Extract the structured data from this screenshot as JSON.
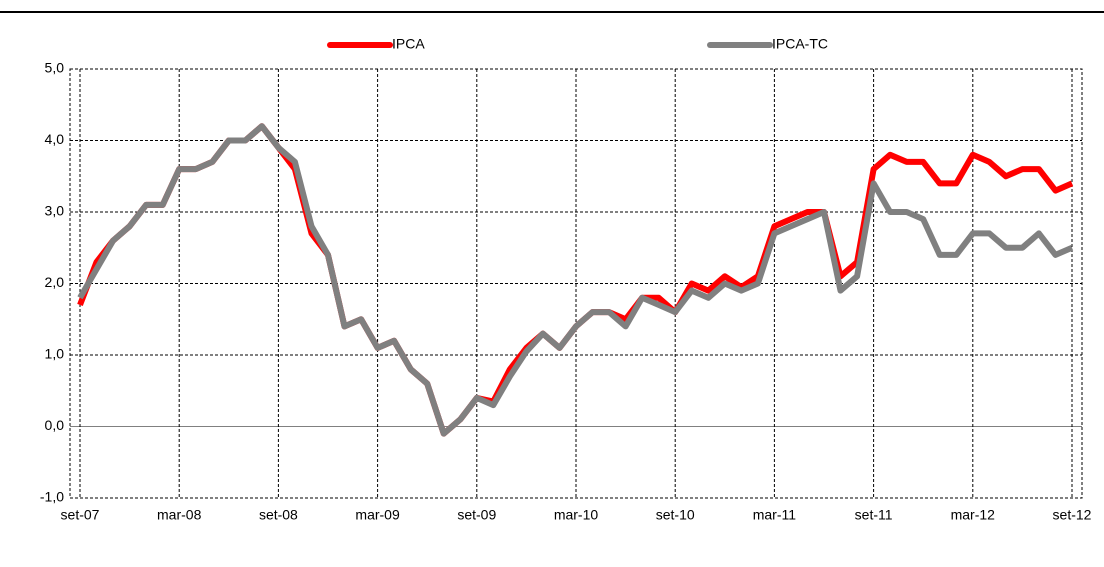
{
  "chart_data": {
    "type": "line",
    "categories": [
      "set-07",
      null,
      null,
      null,
      null,
      null,
      "mar-08",
      null,
      null,
      null,
      null,
      null,
      "set-08",
      null,
      null,
      null,
      null,
      null,
      "mar-09",
      null,
      null,
      null,
      null,
      null,
      "set-09",
      null,
      null,
      null,
      null,
      null,
      "mar-10",
      null,
      null,
      null,
      null,
      null,
      "set-10",
      null,
      null,
      null,
      null,
      null,
      "mar-11",
      null,
      null,
      null,
      null,
      null,
      "set-11",
      null,
      null,
      null,
      null,
      null,
      "mar-12",
      null,
      null,
      null,
      null,
      null,
      "set-12"
    ],
    "series": [
      {
        "name": "IPCA",
        "color": "#ff0000",
        "values": [
          1.7,
          2.3,
          2.6,
          2.8,
          3.1,
          3.1,
          3.6,
          3.6,
          3.7,
          4.0,
          4.0,
          4.2,
          3.9,
          3.6,
          2.7,
          2.4,
          1.4,
          1.5,
          1.1,
          1.2,
          0.8,
          0.6,
          -0.1,
          0.1,
          0.4,
          0.35,
          0.8,
          1.1,
          1.3,
          1.1,
          1.4,
          1.6,
          1.6,
          1.5,
          1.8,
          1.8,
          1.6,
          2.0,
          1.9,
          2.1,
          1.95,
          2.1,
          2.8,
          2.9,
          3.0,
          3.0,
          2.1,
          2.3,
          3.6,
          3.8,
          3.7,
          3.7,
          3.4,
          3.4,
          3.8,
          3.7,
          3.5,
          3.6,
          3.6,
          3.3,
          3.4
        ]
      },
      {
        "name": "IPCA-TC",
        "color": "#808080",
        "values": [
          1.8,
          2.2,
          2.6,
          2.8,
          3.1,
          3.1,
          3.6,
          3.6,
          3.7,
          4.0,
          4.0,
          4.2,
          3.9,
          3.7,
          2.8,
          2.4,
          1.4,
          1.5,
          1.1,
          1.2,
          0.8,
          0.6,
          -0.1,
          0.1,
          0.4,
          0.3,
          0.7,
          1.05,
          1.3,
          1.1,
          1.4,
          1.6,
          1.6,
          1.4,
          1.8,
          1.7,
          1.6,
          1.9,
          1.8,
          2.0,
          1.9,
          2.0,
          2.7,
          2.8,
          2.9,
          3.0,
          1.9,
          2.1,
          3.4,
          3.0,
          3.0,
          2.9,
          2.4,
          2.4,
          2.7,
          2.7,
          2.5,
          2.5,
          2.7,
          2.4,
          2.5
        ]
      }
    ],
    "ylim": [
      -1,
      5
    ],
    "yticks": [
      {
        "value": -1,
        "label": "-1,0"
      },
      {
        "value": 0,
        "label": "0,0"
      },
      {
        "value": 1,
        "label": "1,0"
      },
      {
        "value": 2,
        "label": "2,0"
      },
      {
        "value": 3,
        "label": "3,0"
      },
      {
        "value": 4,
        "label": "4,0"
      },
      {
        "value": 5,
        "label": "5,0"
      }
    ],
    "grid": true,
    "legend": "top"
  }
}
